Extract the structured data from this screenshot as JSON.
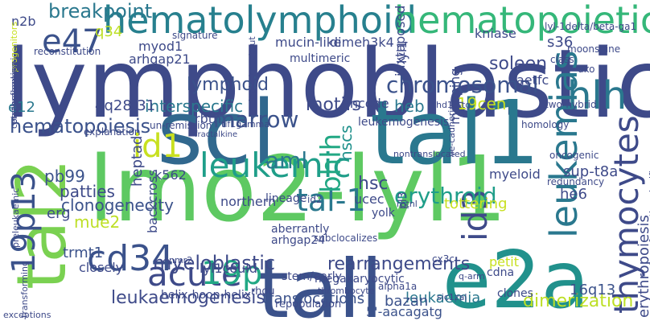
{
  "wordcloud": {
    "words": [
      {
        "text": "lymphoblastic",
        "color": "#3e4a89"
      },
      {
        "text": "lmo2-lyl1",
        "color": "#5ec962"
      },
      {
        "text": "scl",
        "color": "#31688e"
      },
      {
        "text": "tal1",
        "color": "#2a788e"
      },
      {
        "text": "tall",
        "color": "#3b528b"
      },
      {
        "text": "e2a",
        "color": "#21918c"
      },
      {
        "text": "tal2",
        "color": "#7ad151"
      },
      {
        "text": "hematolymphoid",
        "color": "#27808e"
      },
      {
        "text": "hematopoietic",
        "color": "#35b779"
      },
      {
        "text": "leukemias",
        "color": "#2a788e"
      },
      {
        "text": "thymocytes",
        "color": "#3e4a89"
      },
      {
        "text": "leukemic",
        "color": "#1f9e89"
      },
      {
        "text": "hlh",
        "color": "#2a788e"
      },
      {
        "text": "19p13",
        "color": "#3b528b"
      },
      {
        "text": "acute",
        "color": "#3e4a89"
      },
      {
        "text": "19p",
        "color": "#22a884"
      },
      {
        "text": "cd34",
        "color": "#3b528b"
      },
      {
        "text": "id3",
        "color": "#3e4a89"
      },
      {
        "text": "tal-1",
        "color": "#2a788e"
      },
      {
        "text": "bhlh",
        "color": "#22a884"
      },
      {
        "text": "id1",
        "color": "#c8e020"
      },
      {
        "text": "e47",
        "color": "#3b528b"
      },
      {
        "text": "breakpoint",
        "color": "#2a788e"
      },
      {
        "text": "erythroid",
        "color": "#1f9e89"
      },
      {
        "text": "chromosomal",
        "color": "#3b528b"
      },
      {
        "text": "marrow",
        "color": "#3b528b"
      },
      {
        "text": "aml",
        "color": "#2a788e"
      },
      {
        "text": "hematopoiesis",
        "color": "#3b528b"
      },
      {
        "text": "lymphoid",
        "color": "#3b528b"
      },
      {
        "text": "myeloblastic",
        "color": "#3e4a89"
      },
      {
        "text": "leukaemogenesis",
        "color": "#3e4a89"
      },
      {
        "text": "dimerization",
        "color": "#bddf26"
      },
      {
        "text": "rearrangements",
        "color": "#3e4a89"
      },
      {
        "text": "translocations",
        "color": "#3b528b"
      },
      {
        "text": "leukaemia",
        "color": "#2a788e"
      },
      {
        "text": "motifs",
        "color": "#3e4a89"
      },
      {
        "text": "interspecific",
        "color": "#2a788e"
      },
      {
        "text": "hscs",
        "color": "#21918c"
      },
      {
        "text": "hsc",
        "color": "#3e4a89"
      },
      {
        "text": "heb",
        "color": "#2a788e"
      },
      {
        "text": "clonogenecity",
        "color": "#3b528b"
      },
      {
        "text": "patties",
        "color": "#3e4a89"
      },
      {
        "text": "tottering",
        "color": "#c8e020"
      },
      {
        "text": "heptad",
        "color": "#3e4a89"
      },
      {
        "text": "juxtaposed",
        "color": "#3e4a89"
      },
      {
        "text": "mucin-like",
        "color": "#3e4a89"
      },
      {
        "text": "soleen",
        "color": "#3e4a89"
      },
      {
        "text": "aetfc",
        "color": "#3e4a89"
      },
      {
        "text": "erythropoiesis",
        "color": "#3e4a89"
      },
      {
        "text": "sup-t8a",
        "color": "#3e4a89"
      },
      {
        "text": "16q13",
        "color": "#3b528b"
      },
      {
        "text": "19cen",
        "color": "#c8e020"
      },
      {
        "text": "e12",
        "color": "#2a788e"
      },
      {
        "text": "4q28-31",
        "color": "#3e4a89"
      },
      {
        "text": "rbtn",
        "color": "#3e4a89"
      },
      {
        "text": "k562",
        "color": "#3e4a89"
      },
      {
        "text": "pb99",
        "color": "#3b528b"
      },
      {
        "text": "mue2",
        "color": "#bddf26"
      },
      {
        "text": "erg",
        "color": "#3e4a89"
      },
      {
        "text": "trmt1",
        "color": "#3b528b"
      },
      {
        "text": "closely",
        "color": "#3e4a89"
      },
      {
        "text": "he6",
        "color": "#3e4a89"
      },
      {
        "text": "cdna",
        "color": "#3e4a89"
      },
      {
        "text": "petit",
        "color": "#c8e020"
      },
      {
        "text": "bazan",
        "color": "#3b528b"
      },
      {
        "text": "lyl1could",
        "color": "#3e4a89"
      },
      {
        "text": "5'-aacagatg",
        "color": "#3b528b"
      },
      {
        "text": "myeloid",
        "color": "#3e4a89"
      },
      {
        "text": "s36",
        "color": "#3e4a89"
      },
      {
        "text": "kniase",
        "color": "#3e4a89"
      },
      {
        "text": "encode",
        "color": "#3e4a89"
      },
      {
        "text": "mapping",
        "color": "#3e4a89"
      },
      {
        "text": "leukemogenesis",
        "color": "#3e4a89"
      },
      {
        "text": "q34",
        "color": "#bddf26"
      },
      {
        "text": "myod1",
        "color": "#3e4a89"
      },
      {
        "text": "arhgap21",
        "color": "#3e4a89"
      },
      {
        "text": "n2b",
        "color": "#3e4a89"
      },
      {
        "text": "dimeh3k4",
        "color": "#3e4a89"
      },
      {
        "text": "multimeric",
        "color": "#3e4a89"
      },
      {
        "text": "lyl1",
        "color": "#3e4a89"
      },
      {
        "text": "helix-hoop-helix",
        "color": "#3e4a89"
      },
      {
        "text": "ucec",
        "color": "#3e4a89"
      },
      {
        "text": "yolk",
        "color": "#3e4a89"
      },
      {
        "text": "backcross",
        "color": "#3e4a89"
      },
      {
        "text": "northern",
        "color": "#3e4a89"
      },
      {
        "text": "pl3",
        "color": "#3e4a89"
      },
      {
        "text": "aberrantly",
        "color": "#3e4a89"
      },
      {
        "text": "arhgap24",
        "color": "#3e4a89"
      },
      {
        "text": "lineage",
        "color": "#3e4a89"
      },
      {
        "text": "megakaryocytic",
        "color": "#3e4a89"
      },
      {
        "text": "repopulation",
        "color": "#3e4a89"
      },
      {
        "text": "stem/early",
        "color": "#3e4a89"
      },
      {
        "text": "rhou",
        "color": "#3e4a89"
      },
      {
        "text": "alpha1a",
        "color": "#3e4a89"
      },
      {
        "text": "clones",
        "color": "#3e4a89"
      },
      {
        "text": "explanation",
        "color": "#3e4a89"
      },
      {
        "text": "un-remission",
        "color": "#3e4a89"
      },
      {
        "text": "single-knockout",
        "color": "#3e4a89"
      },
      {
        "text": "reconstitution",
        "color": "#3e4a89"
      },
      {
        "text": "two-hybrid",
        "color": "#3e4a89"
      },
      {
        "text": "oncogenic",
        "color": "#3e4a89"
      },
      {
        "text": "redundancy",
        "color": "#3e4a89"
      },
      {
        "text": "homology",
        "color": "#3e4a89"
      },
      {
        "text": "moonshine",
        "color": "#3e4a89"
      },
      {
        "text": "dko",
        "color": "#3e4a89"
      },
      {
        "text": "lyl-1delta/beta-ga1",
        "color": "#3e4a89"
      },
      {
        "text": "nhd13-tg",
        "color": "#3e4a89"
      },
      {
        "text": "rbtnl",
        "color": "#3e4a89"
      },
      {
        "text": "ve-cadherin",
        "color": "#3e4a89"
      },
      {
        "text": "nontranslocated",
        "color": "#3e4a89"
      },
      {
        "text": "cx3c",
        "color": "#3e4a89"
      },
      {
        "text": "subclocalizes",
        "color": "#3e4a89"
      },
      {
        "text": "fractalkine",
        "color": "#3e4a89"
      },
      {
        "text": "tif1gamma",
        "color": "#3e4a89"
      },
      {
        "text": "signature",
        "color": "#3e4a89"
      },
      {
        "text": "erythroleukemia",
        "color": "#3e4a89"
      },
      {
        "text": "progenitors",
        "color": "#c8e020"
      },
      {
        "text": "preleukaemic",
        "color": "#3e4a89"
      },
      {
        "text": "cotransforming",
        "color": "#3e4a89"
      },
      {
        "text": "exceptions",
        "color": "#3e4a89"
      },
      {
        "text": "transforming",
        "color": "#3e4a89"
      },
      {
        "text": "thrombocyte",
        "color": "#3e4a89"
      },
      {
        "text": "nmr2",
        "color": "#3e4a89"
      },
      {
        "text": "id2",
        "color": "#3e4a89"
      },
      {
        "text": "class",
        "color": "#3e4a89"
      },
      {
        "text": "q-arm",
        "color": "#3e4a89"
      },
      {
        "text": "sic1zal",
        "color": "#3e4a89"
      },
      {
        "text": "transformation.significance",
        "color": "#3e4a89"
      }
    ]
  }
}
